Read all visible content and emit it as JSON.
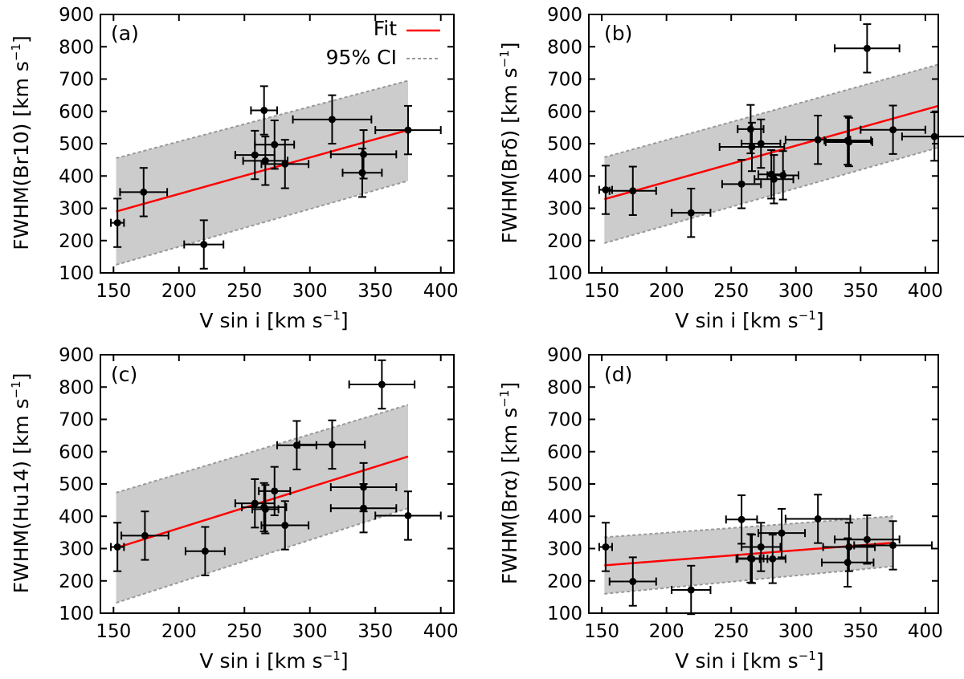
{
  "legend": {
    "fit": "Fit",
    "ci": "95% CI"
  },
  "colors": {
    "fit": "#ff0000",
    "ci_fill": "#cccccc",
    "ci_edge": "#999999",
    "points": "#000000"
  },
  "chart_data": [
    {
      "type": "scatter",
      "panel": "(a)",
      "xlabel": "V sin i [km s−1]",
      "ylabel": "FWHM(Br10) [km s−1]",
      "xlim": [
        140,
        410
      ],
      "ylim": [
        100,
        900
      ],
      "xticks": [
        150,
        200,
        250,
        300,
        350,
        400
      ],
      "yticks": [
        100,
        200,
        300,
        400,
        500,
        600,
        700,
        800,
        900
      ],
      "x_line": [
        152,
        375
      ],
      "fit": [
        290,
        542
      ],
      "ci_upper": [
        455,
        695
      ],
      "ci_lower": [
        125,
        385
      ],
      "points": [
        {
          "x": 153,
          "y": 255,
          "xerr": 5,
          "yerr": 75
        },
        {
          "x": 173,
          "y": 350,
          "xerr": 18,
          "yerr": 75
        },
        {
          "x": 219,
          "y": 188,
          "xerr": 15,
          "yerr": 75
        },
        {
          "x": 258,
          "y": 465,
          "xerr": 15,
          "yerr": 75
        },
        {
          "x": 265,
          "y": 603,
          "xerr": 10,
          "yerr": 75
        },
        {
          "x": 266,
          "y": 447,
          "xerr": 17,
          "yerr": 75
        },
        {
          "x": 273,
          "y": 497,
          "xerr": 15,
          "yerr": 75
        },
        {
          "x": 281,
          "y": 437,
          "xerr": 18,
          "yerr": 75
        },
        {
          "x": 317,
          "y": 575,
          "xerr": 30,
          "yerr": 75
        },
        {
          "x": 340,
          "y": 410,
          "xerr": 15,
          "yerr": 75
        },
        {
          "x": 341,
          "y": 467,
          "xerr": 25,
          "yerr": 75
        },
        {
          "x": 375,
          "y": 542,
          "xerr": 25,
          "yerr": 75
        }
      ]
    },
    {
      "type": "scatter",
      "panel": "(b)",
      "xlabel": "V sin i [km s−1]",
      "ylabel": "FWHM(Brδ) [km s−1]",
      "xlim": [
        140,
        410
      ],
      "ylim": [
        100,
        900
      ],
      "xticks": [
        150,
        200,
        250,
        300,
        350,
        400
      ],
      "yticks": [
        100,
        200,
        300,
        400,
        500,
        600,
        700,
        800,
        900
      ],
      "x_line": [
        152,
        410
      ],
      "fit": [
        328,
        617
      ],
      "ci_upper": [
        458,
        745
      ],
      "ci_lower": [
        192,
        488
      ],
      "points": [
        {
          "x": 153,
          "y": 357,
          "xerr": 5,
          "yerr": 75
        },
        {
          "x": 174,
          "y": 354,
          "xerr": 18,
          "yerr": 75
        },
        {
          "x": 219,
          "y": 286,
          "xerr": 15,
          "yerr": 75
        },
        {
          "x": 258,
          "y": 375,
          "xerr": 15,
          "yerr": 75
        },
        {
          "x": 265,
          "y": 545,
          "xerr": 10,
          "yerr": 75
        },
        {
          "x": 266,
          "y": 490,
          "xerr": 25,
          "yerr": 75
        },
        {
          "x": 273,
          "y": 500,
          "xerr": 15,
          "yerr": 75
        },
        {
          "x": 281,
          "y": 405,
          "xerr": 10,
          "yerr": 75
        },
        {
          "x": 283,
          "y": 390,
          "xerr": 15,
          "yerr": 75
        },
        {
          "x": 290,
          "y": 402,
          "xerr": 12,
          "yerr": 75
        },
        {
          "x": 317,
          "y": 512,
          "xerr": 25,
          "yerr": 75
        },
        {
          "x": 340,
          "y": 510,
          "xerr": 18,
          "yerr": 75
        },
        {
          "x": 341,
          "y": 505,
          "xerr": 18,
          "yerr": 75
        },
        {
          "x": 355,
          "y": 795,
          "xerr": 25,
          "yerr": 75
        },
        {
          "x": 375,
          "y": 543,
          "xerr": 25,
          "yerr": 75
        },
        {
          "x": 407,
          "y": 522,
          "xerr": 25,
          "yerr": 75
        }
      ]
    },
    {
      "type": "scatter",
      "panel": "(c)",
      "xlabel": "V sin i [km s−1]",
      "ylabel": "FWHM(Hu14) [km s−1]",
      "xlim": [
        140,
        410
      ],
      "ylim": [
        100,
        900
      ],
      "xticks": [
        150,
        200,
        250,
        300,
        350,
        400
      ],
      "yticks": [
        100,
        200,
        300,
        400,
        500,
        600,
        700,
        800,
        900
      ],
      "x_line": [
        152,
        375
      ],
      "fit": [
        302,
        585
      ],
      "ci_upper": [
        473,
        745
      ],
      "ci_lower": [
        132,
        425
      ],
      "points": [
        {
          "x": 153,
          "y": 305,
          "xerr": 5,
          "yerr": 75
        },
        {
          "x": 174,
          "y": 340,
          "xerr": 18,
          "yerr": 75
        },
        {
          "x": 220,
          "y": 292,
          "xerr": 15,
          "yerr": 75
        },
        {
          "x": 258,
          "y": 440,
          "xerr": 15,
          "yerr": 75
        },
        {
          "x": 265,
          "y": 428,
          "xerr": 17,
          "yerr": 75
        },
        {
          "x": 266,
          "y": 422,
          "xerr": 10,
          "yerr": 75
        },
        {
          "x": 273,
          "y": 478,
          "xerr": 12,
          "yerr": 75
        },
        {
          "x": 281,
          "y": 372,
          "xerr": 18,
          "yerr": 75
        },
        {
          "x": 290,
          "y": 620,
          "xerr": 15,
          "yerr": 75
        },
        {
          "x": 317,
          "y": 622,
          "xerr": 25,
          "yerr": 75
        },
        {
          "x": 341,
          "y": 490,
          "xerr": 25,
          "yerr": 75
        },
        {
          "x": 341,
          "y": 425,
          "xerr": 25,
          "yerr": 75
        },
        {
          "x": 355,
          "y": 808,
          "xerr": 25,
          "yerr": 75
        },
        {
          "x": 375,
          "y": 402,
          "xerr": 25,
          "yerr": 75
        }
      ]
    },
    {
      "type": "scatter",
      "panel": "(d)",
      "xlabel": "V sin i [km s−1]",
      "ylabel": "FWHM(Brα) [km s−1]",
      "xlim": [
        140,
        410
      ],
      "ylim": [
        100,
        900
      ],
      "xticks": [
        150,
        200,
        250,
        300,
        350,
        400
      ],
      "yticks": [
        100,
        200,
        300,
        400,
        500,
        600,
        700,
        800,
        900
      ],
      "x_line": [
        152,
        375
      ],
      "fit": [
        248,
        318
      ],
      "ci_upper": [
        335,
        400
      ],
      "ci_lower": [
        160,
        245
      ],
      "points": [
        {
          "x": 153,
          "y": 305,
          "xerr": 5,
          "yerr": 75
        },
        {
          "x": 174,
          "y": 198,
          "xerr": 18,
          "yerr": 75
        },
        {
          "x": 219,
          "y": 172,
          "xerr": 15,
          "yerr": 75
        },
        {
          "x": 258,
          "y": 390,
          "xerr": 12,
          "yerr": 75
        },
        {
          "x": 265,
          "y": 270,
          "xerr": 10,
          "yerr": 75
        },
        {
          "x": 266,
          "y": 268,
          "xerr": 12,
          "yerr": 75
        },
        {
          "x": 273,
          "y": 305,
          "xerr": 15,
          "yerr": 75
        },
        {
          "x": 282,
          "y": 268,
          "xerr": 10,
          "yerr": 75
        },
        {
          "x": 289,
          "y": 348,
          "xerr": 18,
          "yerr": 75
        },
        {
          "x": 317,
          "y": 392,
          "xerr": 25,
          "yerr": 75
        },
        {
          "x": 340,
          "y": 257,
          "xerr": 20,
          "yerr": 75
        },
        {
          "x": 341,
          "y": 305,
          "xerr": 20,
          "yerr": 75
        },
        {
          "x": 355,
          "y": 328,
          "xerr": 25,
          "yerr": 75
        },
        {
          "x": 375,
          "y": 310,
          "xerr": 30,
          "yerr": 75
        }
      ]
    }
  ]
}
